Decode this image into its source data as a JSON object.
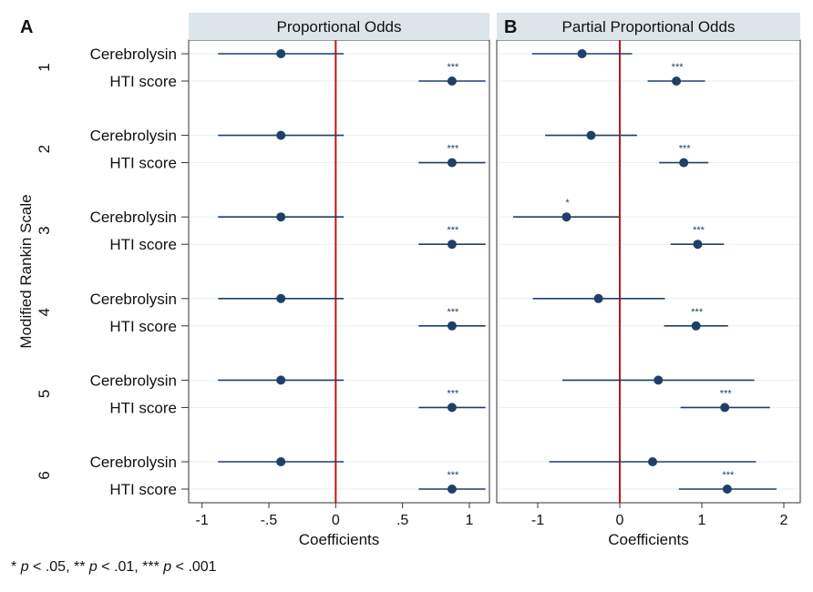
{
  "chart_data": {
    "type": "coefficient-plot",
    "y_axis_label": "Modified Rankin Scale",
    "x_axis_label": "Coefficients",
    "groups": [
      "1",
      "2",
      "3",
      "4",
      "5",
      "6"
    ],
    "predictors": [
      "Cerebrolysin",
      "HTI score"
    ],
    "panels": [
      {
        "letter": "A",
        "title": "Proportional Odds",
        "xlim": [
          -1.1,
          1.15
        ],
        "ticks": [
          -1,
          -0.5,
          0,
          0.5,
          1
        ],
        "tick_labels": [
          "-1",
          "-.5",
          "0",
          ".5",
          "1"
        ],
        "reference_line": 0,
        "series": [
          {
            "group": "1",
            "predictor": "Cerebrolysin",
            "estimate": -0.41,
            "ci": [
              -0.88,
              0.06
            ],
            "sig": ""
          },
          {
            "group": "1",
            "predictor": "HTI score",
            "estimate": 0.87,
            "ci": [
              0.62,
              1.12
            ],
            "sig": "***"
          },
          {
            "group": "2",
            "predictor": "Cerebrolysin",
            "estimate": -0.41,
            "ci": [
              -0.88,
              0.06
            ],
            "sig": ""
          },
          {
            "group": "2",
            "predictor": "HTI score",
            "estimate": 0.87,
            "ci": [
              0.62,
              1.12
            ],
            "sig": "***"
          },
          {
            "group": "3",
            "predictor": "Cerebrolysin",
            "estimate": -0.41,
            "ci": [
              -0.88,
              0.06
            ],
            "sig": ""
          },
          {
            "group": "3",
            "predictor": "HTI score",
            "estimate": 0.87,
            "ci": [
              0.62,
              1.12
            ],
            "sig": "***"
          },
          {
            "group": "4",
            "predictor": "Cerebrolysin",
            "estimate": -0.41,
            "ci": [
              -0.88,
              0.06
            ],
            "sig": ""
          },
          {
            "group": "4",
            "predictor": "HTI score",
            "estimate": 0.87,
            "ci": [
              0.62,
              1.12
            ],
            "sig": "***"
          },
          {
            "group": "5",
            "predictor": "Cerebrolysin",
            "estimate": -0.41,
            "ci": [
              -0.88,
              0.06
            ],
            "sig": ""
          },
          {
            "group": "5",
            "predictor": "HTI score",
            "estimate": 0.87,
            "ci": [
              0.62,
              1.12
            ],
            "sig": "***"
          },
          {
            "group": "6",
            "predictor": "Cerebrolysin",
            "estimate": -0.41,
            "ci": [
              -0.88,
              0.06
            ],
            "sig": ""
          },
          {
            "group": "6",
            "predictor": "HTI score",
            "estimate": 0.87,
            "ci": [
              0.62,
              1.12
            ],
            "sig": "***"
          }
        ]
      },
      {
        "letter": "B",
        "title": "Partial Proportional Odds",
        "xlim": [
          -1.5,
          2.2
        ],
        "ticks": [
          -1,
          0,
          1,
          2
        ],
        "tick_labels": [
          "-1",
          "0",
          "1",
          "2"
        ],
        "reference_line": 0,
        "series": [
          {
            "group": "1",
            "predictor": "Cerebrolysin",
            "estimate": -0.46,
            "ci": [
              -1.07,
              0.15
            ],
            "sig": ""
          },
          {
            "group": "1",
            "predictor": "HTI score",
            "estimate": 0.69,
            "ci": [
              0.34,
              1.04
            ],
            "sig": "***"
          },
          {
            "group": "2",
            "predictor": "Cerebrolysin",
            "estimate": -0.35,
            "ci": [
              -0.91,
              0.21
            ],
            "sig": ""
          },
          {
            "group": "2",
            "predictor": "HTI score",
            "estimate": 0.78,
            "ci": [
              0.48,
              1.08
            ],
            "sig": "***"
          },
          {
            "group": "3",
            "predictor": "Cerebrolysin",
            "estimate": -0.65,
            "ci": [
              -1.3,
              -0.01
            ],
            "sig": "*"
          },
          {
            "group": "3",
            "predictor": "HTI score",
            "estimate": 0.95,
            "ci": [
              0.62,
              1.27
            ],
            "sig": "***"
          },
          {
            "group": "4",
            "predictor": "Cerebrolysin",
            "estimate": -0.26,
            "ci": [
              -1.06,
              0.55
            ],
            "sig": ""
          },
          {
            "group": "4",
            "predictor": "HTI score",
            "estimate": 0.93,
            "ci": [
              0.54,
              1.32
            ],
            "sig": "***"
          },
          {
            "group": "5",
            "predictor": "Cerebrolysin",
            "estimate": 0.47,
            "ci": [
              -0.7,
              1.64
            ],
            "sig": ""
          },
          {
            "group": "5",
            "predictor": "HTI score",
            "estimate": 1.28,
            "ci": [
              0.74,
              1.83
            ],
            "sig": "***"
          },
          {
            "group": "6",
            "predictor": "Cerebrolysin",
            "estimate": 0.4,
            "ci": [
              -0.86,
              1.66
            ],
            "sig": ""
          },
          {
            "group": "6",
            "predictor": "HTI score",
            "estimate": 1.31,
            "ci": [
              0.72,
              1.91
            ],
            "sig": "***"
          }
        ]
      }
    ]
  },
  "footnote": {
    "levels": [
      {
        "stars": "*",
        "p": "p",
        "threshold": " < .05"
      },
      {
        "stars": "**",
        "p": "p",
        "threshold": " < .01"
      },
      {
        "stars": "***",
        "p": "p",
        "threshold": " < .001"
      }
    ]
  },
  "colors": {
    "point": "#1f3f68",
    "line": "#1f3f68",
    "reference": "#c0141c",
    "grid": "#e8eef2",
    "title_bar": "#dbe5ea",
    "frame": "#333333"
  }
}
